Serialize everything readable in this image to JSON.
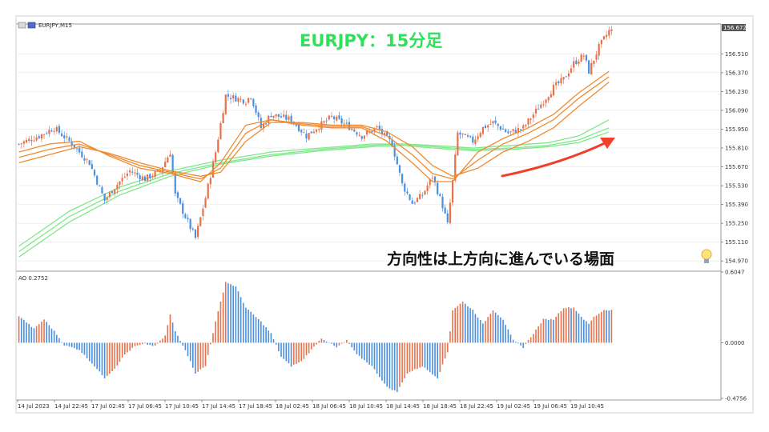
{
  "window": {
    "symbol_label": "EURJPY,M15",
    "title": "EURJPY：15分足"
  },
  "annotation": {
    "text": "方向性は上方向に進んでいる場面",
    "icon": "lightbulb-icon"
  },
  "colors": {
    "bull": "#e8714a",
    "bear": "#4a8fe0",
    "ma_orange": "#f08a30",
    "ma_green": "#7ee88a",
    "arrow": "#f0402a",
    "grid": "#e6e6e6",
    "frame": "#999999"
  },
  "chart_data": [
    {
      "type": "candlestick",
      "name": "price",
      "ylim": [
        154.9,
        156.72
      ],
      "price_tag": "156.672",
      "y_ticks": [
        "156.510",
        "156.370",
        "156.230",
        "156.090",
        "155.950",
        "155.810",
        "155.670",
        "155.530",
        "155.390",
        "155.250",
        "155.110",
        "154.970"
      ],
      "x_labels": [
        "14 Jul 2023",
        "14 Jul 22:45",
        "17 Jul 02:45",
        "17 Jul 06:45",
        "17 Jul 10:45",
        "17 Jul 14:45",
        "17 Jul 18:45",
        "18 Jul 02:45",
        "18 Jul 06:45",
        "18 Jul 10:45",
        "18 Jul 14:45",
        "18 Jul 18:45",
        "18 Jul 22:45",
        "19 Jul 02:45",
        "19 Jul 06:45",
        "19 Jul 10:45"
      ],
      "close_anchors": [
        [
          0,
          155.84
        ],
        [
          8,
          155.9
        ],
        [
          14,
          155.96
        ],
        [
          20,
          155.86
        ],
        [
          28,
          155.7
        ],
        [
          34,
          155.42
        ],
        [
          38,
          155.52
        ],
        [
          44,
          155.64
        ],
        [
          50,
          155.58
        ],
        [
          56,
          155.64
        ],
        [
          60,
          155.78
        ],
        [
          62,
          155.46
        ],
        [
          66,
          155.3
        ],
        [
          70,
          155.14
        ],
        [
          74,
          155.44
        ],
        [
          78,
          155.78
        ],
        [
          82,
          156.2
        ],
        [
          86,
          156.18
        ],
        [
          90,
          156.16
        ],
        [
          92,
          156.2
        ],
        [
          96,
          155.96
        ],
        [
          100,
          156.06
        ],
        [
          108,
          156.02
        ],
        [
          114,
          155.9
        ],
        [
          118,
          155.96
        ],
        [
          124,
          156.04
        ],
        [
          130,
          155.98
        ],
        [
          136,
          155.9
        ],
        [
          142,
          155.96
        ],
        [
          148,
          155.84
        ],
        [
          152,
          155.54
        ],
        [
          156,
          155.4
        ],
        [
          160,
          155.46
        ],
        [
          164,
          155.6
        ],
        [
          168,
          155.38
        ],
        [
          170,
          155.24
        ],
        [
          172,
          155.56
        ],
        [
          174,
          155.92
        ],
        [
          180,
          155.86
        ],
        [
          184,
          155.96
        ],
        [
          188,
          156.0
        ],
        [
          194,
          155.92
        ],
        [
          200,
          155.96
        ],
        [
          204,
          156.06
        ],
        [
          208,
          156.16
        ],
        [
          212,
          156.26
        ],
        [
          216,
          156.32
        ],
        [
          220,
          156.44
        ],
        [
          224,
          156.5
        ],
        [
          226,
          156.38
        ],
        [
          230,
          156.56
        ],
        [
          234,
          156.68
        ]
      ],
      "ma_orange": [
        [
          [
            0,
            155.78
          ],
          [
            12,
            155.84
          ],
          [
            24,
            155.86
          ],
          [
            36,
            155.75
          ],
          [
            48,
            155.66
          ],
          [
            60,
            155.62
          ],
          [
            72,
            155.56
          ],
          [
            80,
            155.7
          ],
          [
            90,
            155.98
          ],
          [
            100,
            156.02
          ],
          [
            112,
            155.98
          ],
          [
            124,
            155.96
          ],
          [
            136,
            155.96
          ],
          [
            146,
            155.86
          ],
          [
            156,
            155.7
          ],
          [
            164,
            155.56
          ],
          [
            172,
            155.56
          ],
          [
            182,
            155.78
          ],
          [
            192,
            155.88
          ],
          [
            202,
            155.96
          ],
          [
            212,
            156.06
          ],
          [
            222,
            156.22
          ],
          [
            234,
            156.38
          ]
        ],
        [
          [
            0,
            155.74
          ],
          [
            12,
            155.8
          ],
          [
            24,
            155.84
          ],
          [
            36,
            155.76
          ],
          [
            48,
            155.68
          ],
          [
            60,
            155.63
          ],
          [
            72,
            155.58
          ],
          [
            80,
            155.66
          ],
          [
            90,
            155.92
          ],
          [
            100,
            156.02
          ],
          [
            112,
            155.99
          ],
          [
            124,
            155.97
          ],
          [
            136,
            155.97
          ],
          [
            146,
            155.9
          ],
          [
            156,
            155.76
          ],
          [
            164,
            155.62
          ],
          [
            172,
            155.58
          ],
          [
            182,
            155.72
          ],
          [
            192,
            155.84
          ],
          [
            202,
            155.92
          ],
          [
            212,
            156.02
          ],
          [
            222,
            156.18
          ],
          [
            234,
            156.34
          ]
        ],
        [
          [
            0,
            155.7
          ],
          [
            12,
            155.76
          ],
          [
            24,
            155.82
          ],
          [
            36,
            155.77
          ],
          [
            48,
            155.7
          ],
          [
            60,
            155.64
          ],
          [
            72,
            155.6
          ],
          [
            80,
            155.63
          ],
          [
            90,
            155.86
          ],
          [
            100,
            156.0
          ],
          [
            112,
            156.0
          ],
          [
            124,
            155.98
          ],
          [
            136,
            155.98
          ],
          [
            146,
            155.93
          ],
          [
            156,
            155.82
          ],
          [
            164,
            155.68
          ],
          [
            172,
            155.6
          ],
          [
            182,
            155.66
          ],
          [
            192,
            155.78
          ],
          [
            202,
            155.86
          ],
          [
            212,
            155.96
          ],
          [
            222,
            156.12
          ],
          [
            234,
            156.3
          ]
        ]
      ],
      "ma_green": [
        [
          [
            0,
            155.08
          ],
          [
            20,
            155.34
          ],
          [
            40,
            155.52
          ],
          [
            60,
            155.64
          ],
          [
            80,
            155.72
          ],
          [
            100,
            155.78
          ],
          [
            120,
            155.81
          ],
          [
            140,
            155.84
          ],
          [
            152,
            155.84
          ],
          [
            164,
            155.83
          ],
          [
            180,
            155.81
          ],
          [
            196,
            155.83
          ],
          [
            210,
            155.85
          ],
          [
            222,
            155.9
          ],
          [
            234,
            156.02
          ]
        ],
        [
          [
            0,
            155.04
          ],
          [
            20,
            155.3
          ],
          [
            40,
            155.49
          ],
          [
            60,
            155.62
          ],
          [
            80,
            155.7
          ],
          [
            100,
            155.76
          ],
          [
            120,
            155.8
          ],
          [
            140,
            155.83
          ],
          [
            152,
            155.84
          ],
          [
            164,
            155.82
          ],
          [
            180,
            155.8
          ],
          [
            196,
            155.81
          ],
          [
            210,
            155.83
          ],
          [
            222,
            155.87
          ],
          [
            234,
            155.96
          ]
        ],
        [
          [
            0,
            155.0
          ],
          [
            20,
            155.26
          ],
          [
            40,
            155.46
          ],
          [
            60,
            155.6
          ],
          [
            80,
            155.69
          ],
          [
            100,
            155.75
          ],
          [
            120,
            155.79
          ],
          [
            140,
            155.82
          ],
          [
            152,
            155.83
          ],
          [
            164,
            155.81
          ],
          [
            180,
            155.79
          ],
          [
            196,
            155.8
          ],
          [
            210,
            155.82
          ],
          [
            222,
            155.85
          ],
          [
            234,
            155.93
          ]
        ]
      ]
    },
    {
      "type": "bar",
      "name": "AO 0.2752",
      "ylim": [
        -0.4756,
        0.6047
      ],
      "y_ticks": [
        "0.6047",
        "0.0000",
        "-0.4756"
      ],
      "value_anchors": [
        [
          0,
          0.23
        ],
        [
          6,
          0.12
        ],
        [
          10,
          0.2
        ],
        [
          14,
          0.1
        ],
        [
          18,
          -0.02
        ],
        [
          24,
          -0.06
        ],
        [
          30,
          -0.2
        ],
        [
          34,
          -0.3
        ],
        [
          38,
          -0.22
        ],
        [
          42,
          -0.1
        ],
        [
          46,
          -0.03
        ],
        [
          50,
          -0.01
        ],
        [
          54,
          -0.03
        ],
        [
          58,
          0.06
        ],
        [
          60,
          0.24
        ],
        [
          62,
          0.1
        ],
        [
          66,
          -0.06
        ],
        [
          70,
          -0.26
        ],
        [
          74,
          -0.2
        ],
        [
          78,
          0.18
        ],
        [
          82,
          0.52
        ],
        [
          86,
          0.48
        ],
        [
          90,
          0.3
        ],
        [
          96,
          0.18
        ],
        [
          100,
          0.08
        ],
        [
          104,
          -0.12
        ],
        [
          108,
          -0.2
        ],
        [
          112,
          -0.16
        ],
        [
          116,
          -0.06
        ],
        [
          120,
          0.04
        ],
        [
          126,
          -0.04
        ],
        [
          130,
          0.02
        ],
        [
          134,
          -0.1
        ],
        [
          140,
          -0.2
        ],
        [
          146,
          -0.38
        ],
        [
          150,
          -0.42
        ],
        [
          154,
          -0.26
        ],
        [
          160,
          -0.2
        ],
        [
          166,
          -0.3
        ],
        [
          170,
          -0.08
        ],
        [
          172,
          0.28
        ],
        [
          176,
          0.35
        ],
        [
          180,
          0.28
        ],
        [
          184,
          0.16
        ],
        [
          188,
          0.28
        ],
        [
          192,
          0.2
        ],
        [
          196,
          0.02
        ],
        [
          200,
          -0.04
        ],
        [
          204,
          0.08
        ],
        [
          208,
          0.2
        ],
        [
          212,
          0.2
        ],
        [
          216,
          0.3
        ],
        [
          220,
          0.3
        ],
        [
          224,
          0.2
        ],
        [
          226,
          0.16
        ],
        [
          228,
          0.22
        ],
        [
          232,
          0.28
        ]
      ]
    }
  ]
}
